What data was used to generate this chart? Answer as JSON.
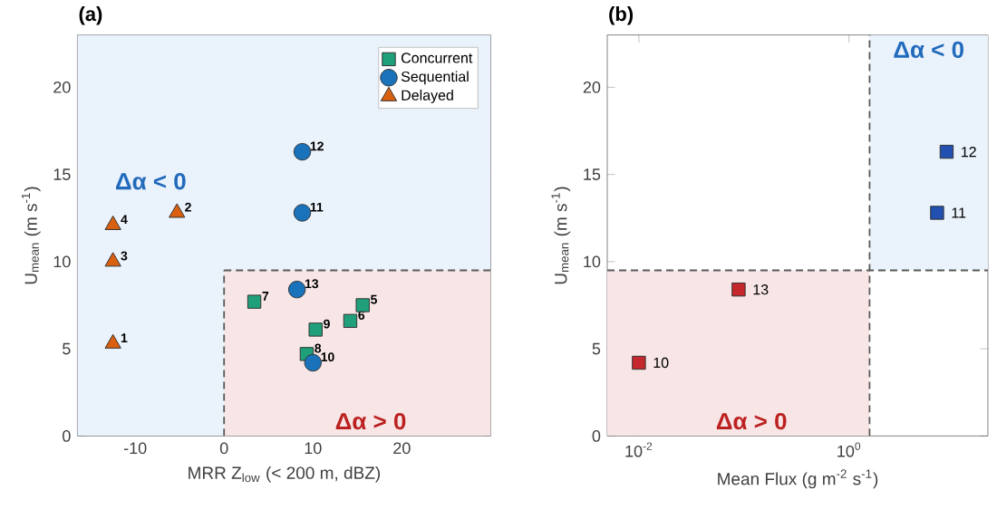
{
  "chart_data": [
    {
      "type": "scatter",
      "title": "(a)",
      "xlabel": "MRR Z$_{low}$ (< 200 m, dBZ)",
      "ylabel": "U$_{mean}$ (m s$^{-1}$)",
      "xlim": [
        -16.5,
        30
      ],
      "ylim": [
        0,
        23
      ],
      "xticks": [
        -10,
        0,
        10,
        20
      ],
      "yticks": [
        0,
        5,
        10,
        15,
        20
      ],
      "legend": "top right",
      "grid": false,
      "series": [
        {
          "name": "Concurrent",
          "color": "#1fa07a",
          "marker": "square",
          "x": [
            15.6,
            14.2,
            3.4,
            9.3,
            10.3
          ],
          "values": [
            7.5,
            6.6,
            7.7,
            4.7,
            6.1
          ]
        },
        {
          "name": "Sequential",
          "color": "#1a72bb",
          "marker": "circle",
          "x": [
            10.0,
            8.8,
            8.8,
            8.2
          ],
          "values": [
            4.2,
            12.8,
            16.3,
            8.4
          ]
        },
        {
          "name": "Delayed",
          "color": "#d9600f",
          "marker": "triangle",
          "x": [
            -12.5,
            -5.3,
            -12.5,
            -12.5
          ],
          "values": [
            5.3,
            12.8,
            10,
            12.1
          ]
        }
      ],
      "bands": [
        {
          "axis": "y",
          "from": 0,
          "to": 23,
          "color": "#eaf2fb",
          "label": "Δα < 0"
        },
        {
          "axis": "x",
          "from": 0,
          "to": 30,
          "color": "#f8e6e6",
          "label": "Δα > 0"
        }
      ],
      "ref_lines": [
        {
          "axis": "y",
          "value": 9.5,
          "line_style": "dashed"
        },
        {
          "axis": "x",
          "value": 0,
          "line_style": "dashed"
        }
      ],
      "annotations": [
        {
          "text": "1",
          "x": -12.5,
          "y": 5.3
        },
        {
          "text": "2",
          "x": -5.3,
          "y": 12.8
        },
        {
          "text": "3",
          "x": -12.5,
          "y": 10
        },
        {
          "text": "4",
          "x": -12.5,
          "y": 12.1
        },
        {
          "text": "5",
          "x": 15.6,
          "y": 7.5
        },
        {
          "text": "6",
          "x": 14.2,
          "y": 6.6
        },
        {
          "text": "7",
          "x": 3.4,
          "y": 7.7
        },
        {
          "text": "8",
          "x": 9.3,
          "y": 4.7
        },
        {
          "text": "9",
          "x": 10.3,
          "y": 6.1
        },
        {
          "text": "10",
          "x": 10.0,
          "y": 4.2
        },
        {
          "text": "11",
          "x": 8.8,
          "y": 12.8
        },
        {
          "text": "12",
          "x": 8.8,
          "y": 16.3
        },
        {
          "text": "13",
          "x": 8.2,
          "y": 8.4
        }
      ]
    },
    {
      "type": "scatter",
      "title": "(b)",
      "xlabel": "Mean Flux (g m$^{-2}$ s$^{-1}$)",
      "ylabel": "U$_{mean}$ (m s$^{-1}$)",
      "log": "x",
      "xlim": [
        0.005,
        21
      ],
      "ylim": [
        0,
        23
      ],
      "xticks": [
        {
          "value": 0.01,
          "label": "10$^{-2}$"
        },
        {
          "value": 1,
          "label": "10$^{0}$"
        }
      ],
      "yticks": [
        0,
        5,
        10,
        15,
        20
      ],
      "grid": false,
      "series": [
        {
          "color": "#c4272c",
          "marker": "square",
          "x": [
            0.01,
            0.089
          ],
          "values": [
            4.2,
            8.4
          ]
        },
        {
          "color": "#2150b0",
          "marker": "square",
          "x": [
            6.9,
            8.5
          ],
          "values": [
            12.8,
            16.3
          ]
        }
      ],
      "bands": [
        {
          "axis": "x",
          "from": 0.005,
          "to": 1.57,
          "color": "#f8e6e6",
          "label": "Δα > 0"
        },
        {
          "axis": "y",
          "from": 9.5,
          "to": 23,
          "color": "#eaf2fb",
          "label": "Δα < 0"
        }
      ],
      "ref_lines": [
        {
          "axis": "y",
          "value": 9.5,
          "line_style": "dashed"
        },
        {
          "axis": "x",
          "value": 1.57,
          "line_style": "dashed"
        }
      ],
      "annotations": [
        {
          "text": "10",
          "x": 0.01,
          "y": 4.2
        },
        {
          "text": "13",
          "x": 0.089,
          "y": 8.4
        },
        {
          "text": "11",
          "x": 6.9,
          "y": 12.8
        },
        {
          "text": "12",
          "x": 8.5,
          "y": 16.3
        }
      ]
    }
  ]
}
